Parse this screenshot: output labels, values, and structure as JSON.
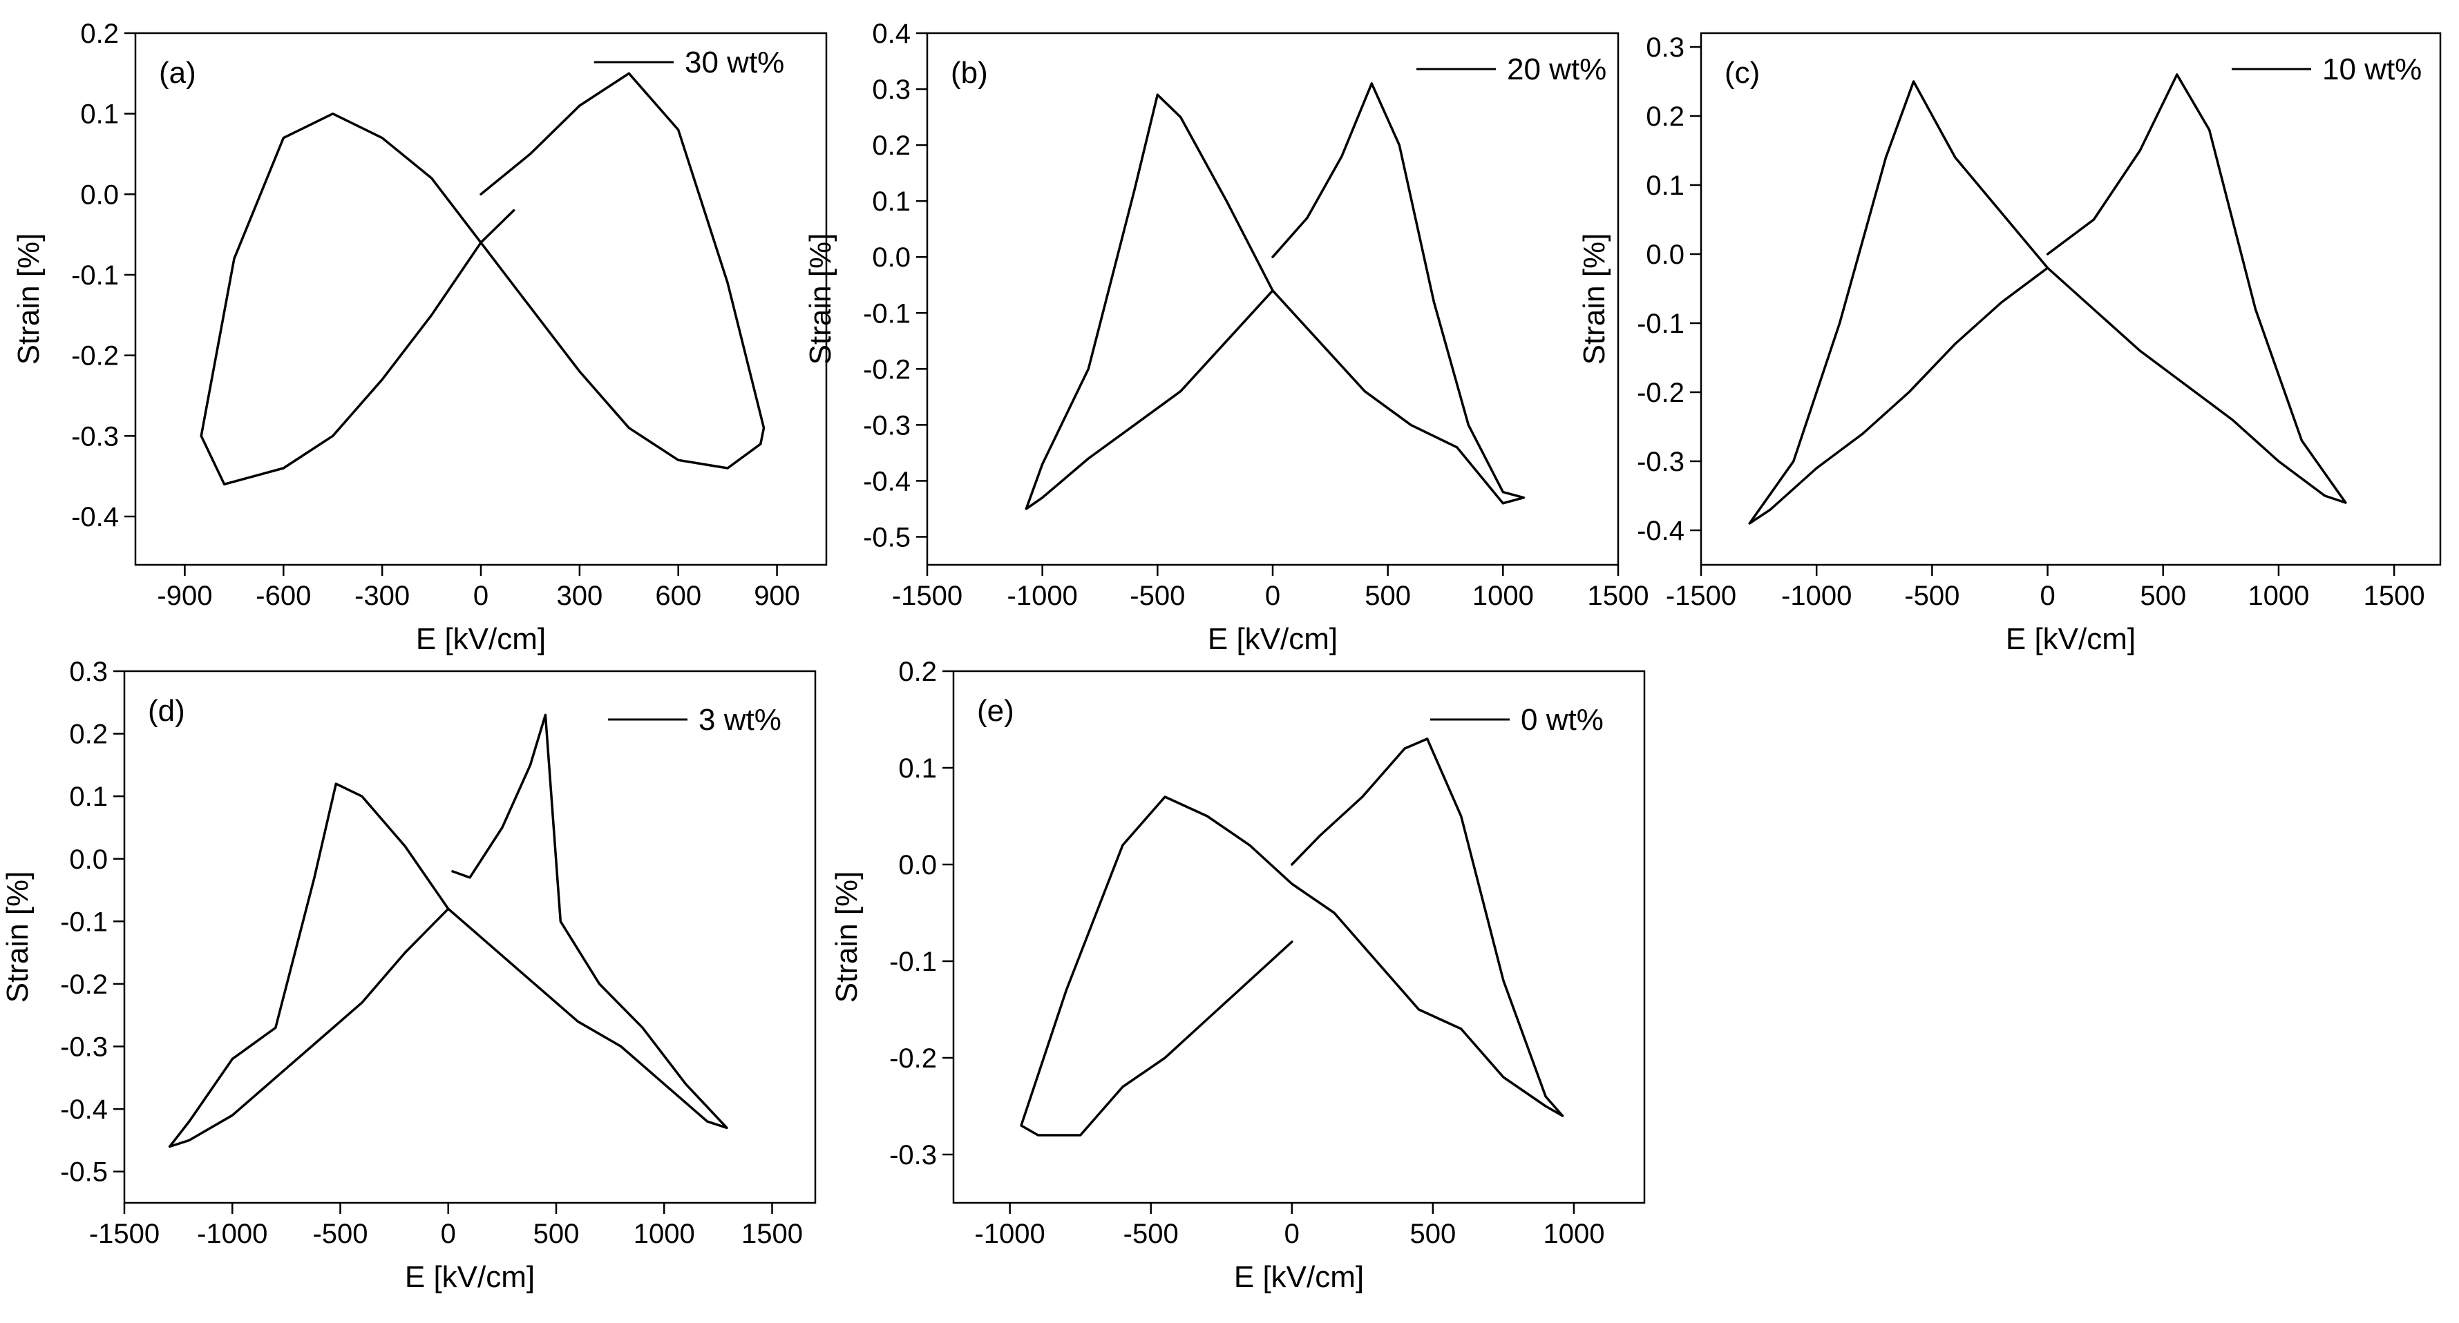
{
  "figure": {
    "colors": {
      "curve": "#000000",
      "axis": "#000000",
      "background": "#ffffff"
    }
  },
  "chart_data": [
    {
      "id": "a",
      "type": "line",
      "panel_label": "(a)",
      "legend": "30 wt%",
      "xlabel": "E [kV/cm]",
      "ylabel": "Strain [%]",
      "xlim": [
        -1050,
        1050
      ],
      "ylim": [
        -0.46,
        0.2
      ],
      "xticks": [
        -900,
        -600,
        -300,
        0,
        300,
        600,
        900
      ],
      "yticks": [
        0.2,
        0.1,
        0.0,
        -0.1,
        -0.2,
        -0.3,
        -0.4
      ],
      "ytick_labels": [
        "0.2",
        "0.1",
        "0.0",
        "-0.1",
        "-0.2",
        "-0.3",
        "-0.4"
      ],
      "series": [
        {
          "name": "30 wt%",
          "x": [
            0,
            150,
            300,
            450,
            600,
            750,
            860,
            850,
            750,
            600,
            450,
            300,
            150,
            0,
            -150,
            -300,
            -450,
            -600,
            -750,
            -850,
            -780,
            -600,
            -450,
            -300,
            -150,
            0,
            100
          ],
          "y": [
            0.0,
            0.05,
            0.11,
            0.15,
            0.08,
            -0.11,
            -0.29,
            -0.31,
            -0.34,
            -0.33,
            -0.29,
            -0.22,
            -0.14,
            -0.06,
            0.02,
            0.07,
            0.1,
            0.07,
            -0.08,
            -0.3,
            -0.36,
            -0.34,
            -0.3,
            -0.23,
            -0.15,
            -0.06,
            -0.02
          ]
        }
      ]
    },
    {
      "id": "b",
      "type": "line",
      "panel_label": "(b)",
      "legend": "20 wt%",
      "xlabel": "E [kV/cm]",
      "ylabel": "Strain [%]",
      "xlim": [
        -1500,
        1500
      ],
      "ylim": [
        -0.55,
        0.4
      ],
      "xticks": [
        -1500,
        -1000,
        -500,
        0,
        500,
        1000,
        1500
      ],
      "yticks": [
        0.4,
        0.3,
        0.2,
        0.1,
        0.0,
        -0.1,
        -0.2,
        -0.3,
        -0.4,
        -0.5
      ],
      "ytick_labels": [
        "0.4",
        "0.3",
        "0.2",
        "0.1",
        "0.0",
        "-0.1",
        "-0.2",
        "-0.3",
        "-0.4",
        "-0.5"
      ],
      "series": [
        {
          "name": "20 wt%",
          "x": [
            0,
            150,
            300,
            430,
            550,
            700,
            850,
            1000,
            1090,
            1000,
            800,
            600,
            400,
            200,
            0,
            -200,
            -400,
            -500,
            -600,
            -800,
            -1000,
            -1070,
            -1000,
            -800,
            -600,
            -400,
            -200,
            0
          ],
          "y": [
            0.0,
            0.07,
            0.18,
            0.31,
            0.2,
            -0.08,
            -0.3,
            -0.42,
            -0.43,
            -0.44,
            -0.34,
            -0.3,
            -0.24,
            -0.15,
            -0.06,
            0.1,
            0.25,
            0.29,
            0.12,
            -0.2,
            -0.37,
            -0.45,
            -0.43,
            -0.36,
            -0.3,
            -0.24,
            -0.15,
            -0.06
          ]
        }
      ]
    },
    {
      "id": "c",
      "type": "line",
      "panel_label": "(c)",
      "legend": "10 wt%",
      "xlabel": "E [kV/cm]",
      "ylabel": "Strain [%]",
      "xlim": [
        -1500,
        1700
      ],
      "ylim": [
        -0.45,
        0.32
      ],
      "xticks": [
        -1500,
        -1000,
        -500,
        0,
        500,
        1000,
        1500
      ],
      "yticks": [
        0.3,
        0.2,
        0.1,
        0.0,
        -0.1,
        -0.2,
        -0.3,
        -0.4
      ],
      "ytick_labels": [
        "0.3",
        "0.2",
        "0.1",
        "0.0",
        "-0.1",
        "-0.2",
        "-0.3",
        "-0.4"
      ],
      "series": [
        {
          "name": "10 wt%",
          "x": [
            0,
            200,
            400,
            560,
            700,
            900,
            1100,
            1290,
            1200,
            1000,
            800,
            600,
            400,
            200,
            0,
            -200,
            -400,
            -580,
            -700,
            -900,
            -1100,
            -1290,
            -1200,
            -1000,
            -800,
            -600,
            -400,
            -200,
            0
          ],
          "y": [
            0.0,
            0.05,
            0.15,
            0.26,
            0.18,
            -0.08,
            -0.27,
            -0.36,
            -0.35,
            -0.3,
            -0.24,
            -0.19,
            -0.14,
            -0.08,
            -0.02,
            0.06,
            0.14,
            0.25,
            0.14,
            -0.1,
            -0.3,
            -0.39,
            -0.37,
            -0.31,
            -0.26,
            -0.2,
            -0.13,
            -0.07,
            -0.02
          ]
        }
      ]
    },
    {
      "id": "d",
      "type": "line",
      "panel_label": "(d)",
      "legend": "3 wt%",
      "xlabel": "E [kV/cm]",
      "ylabel": "Strain [%]",
      "xlim": [
        -1500,
        1700
      ],
      "ylim": [
        -0.55,
        0.3
      ],
      "xticks": [
        -1500,
        -1000,
        -500,
        0,
        500,
        1000,
        1500
      ],
      "yticks": [
        0.3,
        0.2,
        0.1,
        0.0,
        -0.1,
        -0.2,
        -0.3,
        -0.4,
        -0.5
      ],
      "ytick_labels": [
        "0.3",
        "0.2",
        "0.1",
        "0.0",
        "-0.1",
        "-0.2",
        "-0.3",
        "-0.4",
        "-0.5"
      ],
      "series": [
        {
          "name": "3 wt%",
          "x": [
            20,
            100,
            250,
            380,
            450,
            520,
            700,
            900,
            1100,
            1290,
            1200,
            1000,
            800,
            600,
            400,
            200,
            0,
            -200,
            -400,
            -520,
            -620,
            -800,
            -1000,
            -1200,
            -1290,
            -1200,
            -1000,
            -800,
            -600,
            -400,
            -200,
            0
          ],
          "y": [
            -0.02,
            -0.03,
            0.05,
            0.15,
            0.23,
            -0.1,
            -0.2,
            -0.27,
            -0.36,
            -0.43,
            -0.42,
            -0.36,
            -0.3,
            -0.26,
            -0.2,
            -0.14,
            -0.08,
            0.02,
            0.1,
            0.12,
            -0.03,
            -0.27,
            -0.32,
            -0.42,
            -0.46,
            -0.45,
            -0.41,
            -0.35,
            -0.29,
            -0.23,
            -0.15,
            -0.08
          ]
        }
      ]
    },
    {
      "id": "e",
      "type": "line",
      "panel_label": "(e)",
      "legend": "0 wt%",
      "xlabel": "E [kV/cm]",
      "ylabel": "Strain [%]",
      "xlim": [
        -1200,
        1250
      ],
      "ylim": [
        -0.35,
        0.2
      ],
      "xticks": [
        -1000,
        -500,
        0,
        500,
        1000
      ],
      "yticks": [
        0.2,
        0.1,
        0.0,
        -0.1,
        -0.2,
        -0.3
      ],
      "ytick_labels": [
        "0.2",
        "0.1",
        "0.0",
        "-0.1",
        "-0.2",
        "-0.3"
      ],
      "series": [
        {
          "name": "0 wt%",
          "x": [
            0,
            100,
            250,
            400,
            480,
            600,
            750,
            900,
            960,
            900,
            750,
            600,
            450,
            300,
            150,
            0,
            -150,
            -300,
            -450,
            -600,
            -800,
            -960,
            -900,
            -750,
            -600,
            -450,
            -300,
            -150,
            0
          ],
          "y": [
            0.0,
            0.03,
            0.07,
            0.12,
            0.13,
            0.05,
            -0.12,
            -0.24,
            -0.26,
            -0.25,
            -0.22,
            -0.17,
            -0.15,
            -0.1,
            -0.05,
            -0.02,
            0.02,
            0.05,
            0.07,
            0.02,
            -0.13,
            -0.27,
            -0.28,
            -0.28,
            -0.23,
            -0.2,
            -0.16,
            -0.12,
            -0.08
          ]
        }
      ]
    }
  ]
}
